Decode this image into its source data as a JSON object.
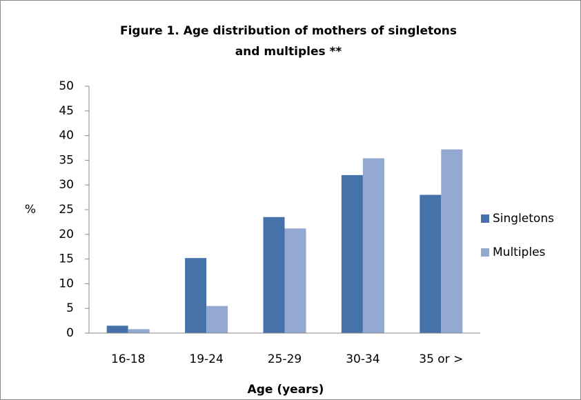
{
  "chart_data": {
    "type": "bar",
    "title": "Figure 1. Age distribution of mothers of singletons and multiples **",
    "x_label": "Age (years)",
    "y_label": "%",
    "categories": [
      "16-18",
      "19-24",
      "25-29",
      "30-34",
      "35 or >"
    ],
    "series": [
      {
        "name": "Singletons",
        "color": "#4672aa",
        "values": [
          1.5,
          15.2,
          23.5,
          32,
          28
        ]
      },
      {
        "name": "Multiples",
        "color": "#94a9d1",
        "values": [
          0.8,
          5.5,
          21.2,
          35.4,
          37.2
        ]
      }
    ],
    "ylim": [
      0,
      50
    ],
    "yticks": [
      0,
      5,
      10,
      15,
      20,
      25,
      30,
      35,
      40,
      45,
      50
    ],
    "legend": "right"
  }
}
